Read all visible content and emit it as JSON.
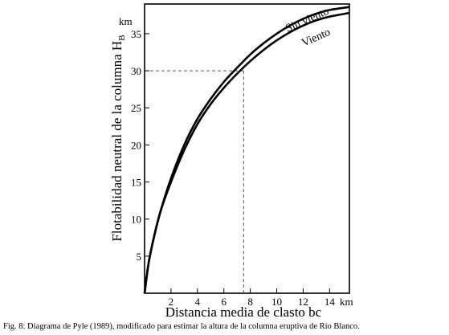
{
  "chart_data": {
    "type": "line",
    "xlabel": "Distancia media de clasto bc",
    "x_unit": "km",
    "ylabel": "Flotabilidad neutral de la columna H",
    "ylabel_subscript": "B",
    "y_unit": "km",
    "xlim": [
      0,
      15.5
    ],
    "ylim": [
      0,
      39
    ],
    "x_ticks": [
      2,
      4,
      6,
      8,
      10,
      12,
      14
    ],
    "y_ticks": [
      5,
      10,
      15,
      20,
      25,
      30,
      35
    ],
    "grid": false,
    "series": [
      {
        "name": "Sin viento",
        "x": [
          0,
          0.3,
          0.7,
          1.2,
          2,
          3,
          4,
          5,
          6,
          7,
          8,
          9,
          10,
          11,
          12,
          13,
          14,
          15.5
        ],
        "y": [
          0,
          4,
          7.5,
          11,
          15.5,
          20,
          23.5,
          26.2,
          28.5,
          30.4,
          32.2,
          33.7,
          35,
          36.1,
          37,
          37.7,
          38.2,
          38.6
        ]
      },
      {
        "name": "Viento",
        "x": [
          0,
          0.3,
          0.7,
          1.2,
          2,
          3,
          4,
          5,
          6,
          7,
          8,
          9,
          10,
          11,
          12,
          13,
          14,
          15.5
        ],
        "y": [
          0,
          4,
          7.5,
          11,
          15,
          19.3,
          22.8,
          25.5,
          27.7,
          29.6,
          31.3,
          32.8,
          34.1,
          35.2,
          36.1,
          36.8,
          37.3,
          37.8
        ]
      }
    ],
    "reference": {
      "x": 7.5,
      "y": 30
    }
  },
  "caption": "Fig. 8: Diagrama de Pyle (1989), modificado para estimar la altura de la columna eruptiva de Río Blanco."
}
